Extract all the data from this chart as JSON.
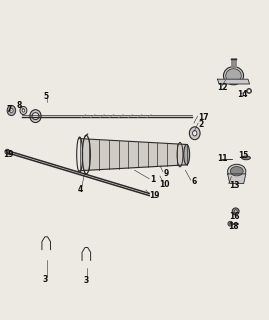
{
  "bg_color": "#ede9e3",
  "line_color": "#2a2a2a",
  "gray1": "#aaaaaa",
  "gray2": "#c8c8c8",
  "gray3": "#888888",
  "gray4": "#666666",
  "label_fs": 5.5,
  "label_color": "#111111"
}
